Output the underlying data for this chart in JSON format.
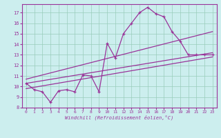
{
  "xlabel": "Windchill (Refroidissement éolien,°C)",
  "bg_color": "#cceeee",
  "line_color": "#993399",
  "xlim": [
    -0.5,
    23.5
  ],
  "ylim": [
    8,
    17.8
  ],
  "xticks": [
    0,
    1,
    2,
    3,
    4,
    5,
    6,
    7,
    8,
    9,
    10,
    11,
    12,
    13,
    14,
    15,
    16,
    17,
    18,
    19,
    20,
    21,
    22,
    23
  ],
  "yticks": [
    8,
    9,
    10,
    11,
    12,
    13,
    14,
    15,
    16,
    17
  ],
  "grid_color": "#99ccbb",
  "series1_x": [
    0,
    1,
    2,
    3,
    4,
    5,
    6,
    7,
    8,
    9,
    10,
    11,
    12,
    13,
    14,
    15,
    16,
    17,
    18,
    19,
    20,
    21,
    22,
    23
  ],
  "series1_y": [
    10.3,
    9.7,
    9.5,
    8.5,
    9.6,
    9.7,
    9.5,
    11.1,
    11.0,
    9.5,
    14.1,
    12.7,
    15.0,
    16.0,
    17.0,
    17.5,
    16.9,
    16.6,
    15.2,
    14.3,
    13.0,
    13.0,
    13.0,
    13.0
  ],
  "line1_x": [
    0,
    23
  ],
  "line1_y": [
    9.8,
    12.8
  ],
  "line2_x": [
    0,
    23
  ],
  "line2_y": [
    10.3,
    13.2
  ],
  "line3_x": [
    0,
    23
  ],
  "line3_y": [
    10.7,
    15.2
  ]
}
